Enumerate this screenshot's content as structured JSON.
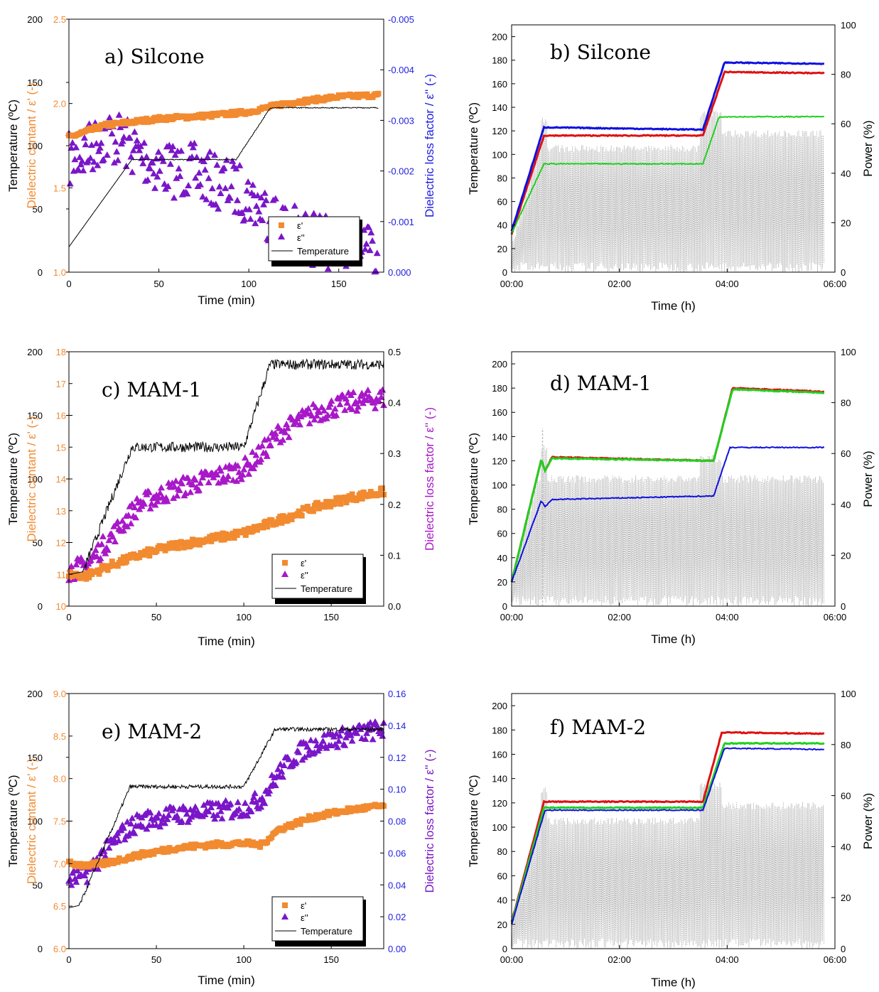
{
  "chart_data": [
    {
      "type": "scatter",
      "id": "a",
      "title": "a) Silcone",
      "xlabel": "Time (min)",
      "ylabel_left": "Temperature (ºC)",
      "ylabel_mid": "Dielectric contant / ε' (-)",
      "ylabel_right": "Dielectric loss factor / ε'' (-)",
      "xlim": [
        0,
        175
      ],
      "xticks": [
        "0",
        "50",
        "100",
        "150"
      ],
      "ylim_temp": [
        0,
        200
      ],
      "temp_ticks": [
        "0",
        "50",
        "100",
        "150",
        "200"
      ],
      "ylim_eps1": [
        1.0,
        2.5
      ],
      "eps1_ticks": [
        "1.0",
        "1.5",
        "2.0",
        "2.5"
      ],
      "ylim_eps2": [
        0,
        -0.005
      ],
      "eps2_ticks": [
        "0.000",
        "-0.001",
        "-0.002",
        "-0.003",
        "-0.004",
        "-0.005"
      ],
      "legend": {
        "position": "bottom-right",
        "eps1": "ε'",
        "eps2": "ε''",
        "temp": "Temperature"
      },
      "series": [
        {
          "name": "Temperature",
          "axis": "temp",
          "x": [
            0,
            35,
            93,
            112,
            172
          ],
          "y": [
            20,
            89,
            89,
            130,
            130
          ]
        },
        {
          "name": "ε'",
          "axis": "eps1",
          "x": [
            0,
            20,
            50,
            80,
            100,
            120,
            150,
            172
          ],
          "y": [
            1.8,
            1.87,
            1.91,
            1.93,
            1.95,
            2.0,
            2.04,
            2.05
          ]
        },
        {
          "name": "ε''",
          "axis": "eps2",
          "x": [
            0,
            10,
            20,
            30,
            40,
            50,
            60,
            70,
            80,
            90,
            100,
            110,
            120,
            130,
            140,
            150,
            160,
            172
          ],
          "y": [
            -0.0022,
            -0.0024,
            -0.0027,
            -0.0026,
            -0.0023,
            -0.0021,
            -0.002,
            -0.002,
            -0.0018,
            -0.0017,
            -0.0015,
            -0.0012,
            -0.0009,
            -0.0007,
            -0.0006,
            -0.0005,
            -0.0004,
            -0.0003
          ]
        }
      ]
    },
    {
      "type": "line",
      "id": "b",
      "title": "b) Silcone",
      "xlabel": "Time (h)",
      "ylabel": "Temperature (ºC)",
      "ylabel_right": "Power (%)",
      "xticks": [
        "00:00",
        "02:00",
        "04:00",
        "06:00"
      ],
      "xlim_h": [
        0,
        6
      ],
      "ylim": [
        0,
        210
      ],
      "yticks": [
        "0",
        "20",
        "40",
        "60",
        "80",
        "100",
        "120",
        "140",
        "160",
        "180",
        "200"
      ],
      "ylim_right": [
        0,
        100
      ],
      "yticks_right": [
        "0",
        "20",
        "40",
        "60",
        "80",
        "100"
      ],
      "series": [
        {
          "color": "#e01010",
          "x": [
            0,
            0.6,
            3.55,
            3.95,
            5.8
          ],
          "y": [
            32,
            116,
            116,
            170,
            169
          ]
        },
        {
          "color": "#1010e0",
          "x": [
            0,
            0.6,
            3.55,
            3.95,
            5.8
          ],
          "y": [
            35,
            123,
            121,
            178,
            177
          ]
        },
        {
          "color": "#20d020",
          "x": [
            0,
            0.6,
            3.55,
            3.85,
            5.8
          ],
          "y": [
            33,
            92,
            92,
            132,
            132
          ]
        }
      ],
      "power": {
        "pre": 50,
        "mid": 50,
        "post": 56,
        "start": 10
      }
    },
    {
      "type": "scatter",
      "id": "c",
      "title": "c) MAM-1",
      "xlabel": "Time (min)",
      "ylabel_left": "Temperature (ºC)",
      "ylabel_mid": "Dielectric contant / ε' (-)",
      "ylabel_right": "Dielectric loss factor / ε'' (-)",
      "xlim": [
        0,
        180
      ],
      "xticks": [
        "0",
        "50",
        "100",
        "150"
      ],
      "ylim_temp": [
        0,
        200
      ],
      "temp_ticks": [
        "0",
        "50",
        "100",
        "150",
        "200"
      ],
      "ylim_eps1": [
        10,
        18
      ],
      "eps1_ticks": [
        "10",
        "11",
        "12",
        "13",
        "14",
        "15",
        "16",
        "17",
        "18"
      ],
      "ylim_eps2": [
        0,
        0.5
      ],
      "eps2_ticks": [
        "0.0",
        "0.1",
        "0.2",
        "0.3",
        "0.4",
        "0.5"
      ],
      "legend": {
        "position": "bottom-right",
        "eps1": "ε'",
        "eps2": "ε''",
        "temp": "Temperature"
      },
      "series": [
        {
          "name": "Temperature",
          "axis": "temp",
          "x": [
            0,
            8,
            36,
            100,
            115,
            180
          ],
          "y": [
            25,
            27,
            125,
            125,
            190,
            190
          ]
        },
        {
          "name": "ε'",
          "axis": "eps1",
          "x": [
            0,
            10,
            20,
            40,
            60,
            80,
            100,
            120,
            140,
            160,
            180
          ],
          "y": [
            11.0,
            10.95,
            11.2,
            11.6,
            11.9,
            12.1,
            12.3,
            12.7,
            13.1,
            13.4,
            13.6
          ]
        },
        {
          "name": "ε''",
          "axis": "eps2",
          "x": [
            0,
            10,
            20,
            30,
            40,
            60,
            80,
            100,
            110,
            120,
            140,
            160,
            180
          ],
          "y": [
            0.07,
            0.08,
            0.12,
            0.16,
            0.2,
            0.23,
            0.25,
            0.27,
            0.3,
            0.34,
            0.38,
            0.4,
            0.41
          ]
        }
      ]
    },
    {
      "type": "line",
      "id": "d",
      "title": "d) MAM-1",
      "xlabel": "Time (h)",
      "ylabel": "Temperature (ºC)",
      "ylabel_right": "Power (%)",
      "xticks": [
        "00:00",
        "02:00",
        "04:00",
        "06:00"
      ],
      "xlim_h": [
        0,
        6
      ],
      "ylim": [
        0,
        210
      ],
      "yticks": [
        "0",
        "20",
        "40",
        "60",
        "80",
        "100",
        "120",
        "140",
        "160",
        "180",
        "200"
      ],
      "ylim_right": [
        0,
        100
      ],
      "yticks_right": [
        "0",
        "20",
        "40",
        "60",
        "80",
        "100"
      ],
      "series": [
        {
          "color": "#e01010",
          "x": [
            0,
            0.55,
            0.62,
            0.75,
            3.75,
            4.1,
            5.8
          ],
          "y": [
            20,
            121,
            112,
            123,
            120,
            180,
            177
          ]
        },
        {
          "color": "#20d020",
          "x": [
            0,
            0.55,
            0.62,
            0.75,
            3.75,
            4.1,
            5.8
          ],
          "y": [
            20,
            121,
            112,
            122,
            120,
            179,
            176
          ]
        },
        {
          "color": "#1010e0",
          "x": [
            0,
            0.55,
            0.62,
            0.75,
            3.75,
            4.05,
            5.8
          ],
          "y": [
            20,
            87,
            82,
            88,
            91,
            131,
            131
          ]
        }
      ],
      "power": {
        "pre": 50,
        "mid": 50,
        "post": 50,
        "start": 10
      }
    },
    {
      "type": "scatter",
      "id": "e",
      "title": "e) MAM-2",
      "xlabel": "Time (min)",
      "ylabel_left": "Temperature (ºC)",
      "ylabel_mid": "Dielectric contant / ε' (-)",
      "ylabel_right": "Dielectric loss factor / ε'' (-)",
      "xlim": [
        0,
        180
      ],
      "xticks": [
        "0",
        "50",
        "100",
        "150"
      ],
      "ylim_temp": [
        0,
        200
      ],
      "temp_ticks": [
        "0",
        "50",
        "100",
        "150",
        "200"
      ],
      "ylim_eps1": [
        6.0,
        9.0
      ],
      "eps1_ticks": [
        "6.0",
        "6.5",
        "7.0",
        "7.5",
        "8.0",
        "8.5",
        "9.0"
      ],
      "ylim_eps2": [
        0,
        0.16
      ],
      "eps2_ticks": [
        "0.00",
        "0.02",
        "0.04",
        "0.06",
        "0.08",
        "0.10",
        "0.12",
        "0.14",
        "0.16"
      ],
      "legend": {
        "position": "bottom-right",
        "eps1": "ε'",
        "eps2": "ε''",
        "temp": "Temperature"
      },
      "series": [
        {
          "name": "Temperature",
          "axis": "temp",
          "x": [
            0,
            6,
            35,
            100,
            118,
            180
          ],
          "y": [
            32,
            34,
            127,
            127,
            172,
            172
          ]
        },
        {
          "name": "ε'",
          "axis": "eps1",
          "x": [
            0,
            10,
            20,
            40,
            60,
            80,
            100,
            110,
            120,
            140,
            160,
            180
          ],
          "y": [
            7.0,
            6.98,
            7.0,
            7.1,
            7.18,
            7.22,
            7.24,
            7.22,
            7.4,
            7.55,
            7.63,
            7.68
          ]
        },
        {
          "name": "ε''",
          "axis": "eps2",
          "x": [
            0,
            10,
            20,
            30,
            40,
            60,
            80,
            100,
            110,
            120,
            130,
            140,
            160,
            180
          ],
          "y": [
            0.043,
            0.047,
            0.06,
            0.072,
            0.08,
            0.084,
            0.086,
            0.088,
            0.094,
            0.11,
            0.122,
            0.128,
            0.134,
            0.138
          ]
        }
      ]
    },
    {
      "type": "line",
      "id": "f",
      "title": "f) MAM-2",
      "xlabel": "Time (h)",
      "ylabel": "Temperature (ºC)",
      "ylabel_right": "Power (%)",
      "xticks": [
        "00:00",
        "02:00",
        "04:00",
        "06:00"
      ],
      "xlim_h": [
        0,
        6
      ],
      "ylim": [
        0,
        210
      ],
      "yticks": [
        "0",
        "20",
        "40",
        "60",
        "80",
        "100",
        "120",
        "140",
        "160",
        "180",
        "200"
      ],
      "ylim_right": [
        0,
        100
      ],
      "yticks_right": [
        "0",
        "20",
        "40",
        "60",
        "80",
        "100"
      ],
      "series": [
        {
          "color": "#e01010",
          "x": [
            0,
            0.6,
            3.55,
            3.9,
            5.8
          ],
          "y": [
            22,
            121,
            121,
            178,
            177
          ]
        },
        {
          "color": "#20d020",
          "x": [
            0,
            0.6,
            3.55,
            3.95,
            5.8
          ],
          "y": [
            21,
            116,
            116,
            169,
            169
          ]
        },
        {
          "color": "#1010e0",
          "x": [
            0,
            0.62,
            3.55,
            3.95,
            5.8
          ],
          "y": [
            20,
            114,
            114,
            165,
            164
          ]
        }
      ],
      "power": {
        "pre": 50,
        "mid": 50,
        "post": 56,
        "start": 10
      }
    }
  ],
  "colors": {
    "eps1": "#f28a30",
    "eps2_a": "#7a16c8",
    "eps2_c": "#a818c8",
    "eps2_e": "#7a16c8",
    "axis_right_blue": "#2020e0",
    "temperature": "#000000",
    "power": "#a0a0a0"
  }
}
